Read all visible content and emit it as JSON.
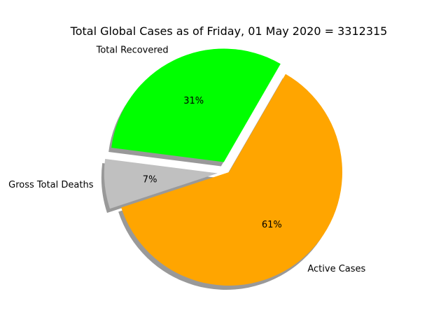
{
  "chart_data": {
    "type": "pie",
    "title": "Total Global Cases as of Friday, 01 May 2020 = 3312315",
    "slices": [
      {
        "label": "Total Recovered",
        "percent_label": "31%",
        "value": 31,
        "color": "#00ff00",
        "exploded": true
      },
      {
        "label": "Gross Total Deaths",
        "percent_label": "7%",
        "value": 7,
        "color": "#c0c0c0",
        "exploded": true
      },
      {
        "label": "Active Cases",
        "percent_label": "61%",
        "value": 61,
        "color": "#ffa500",
        "exploded": false
      }
    ],
    "shadow": true
  }
}
